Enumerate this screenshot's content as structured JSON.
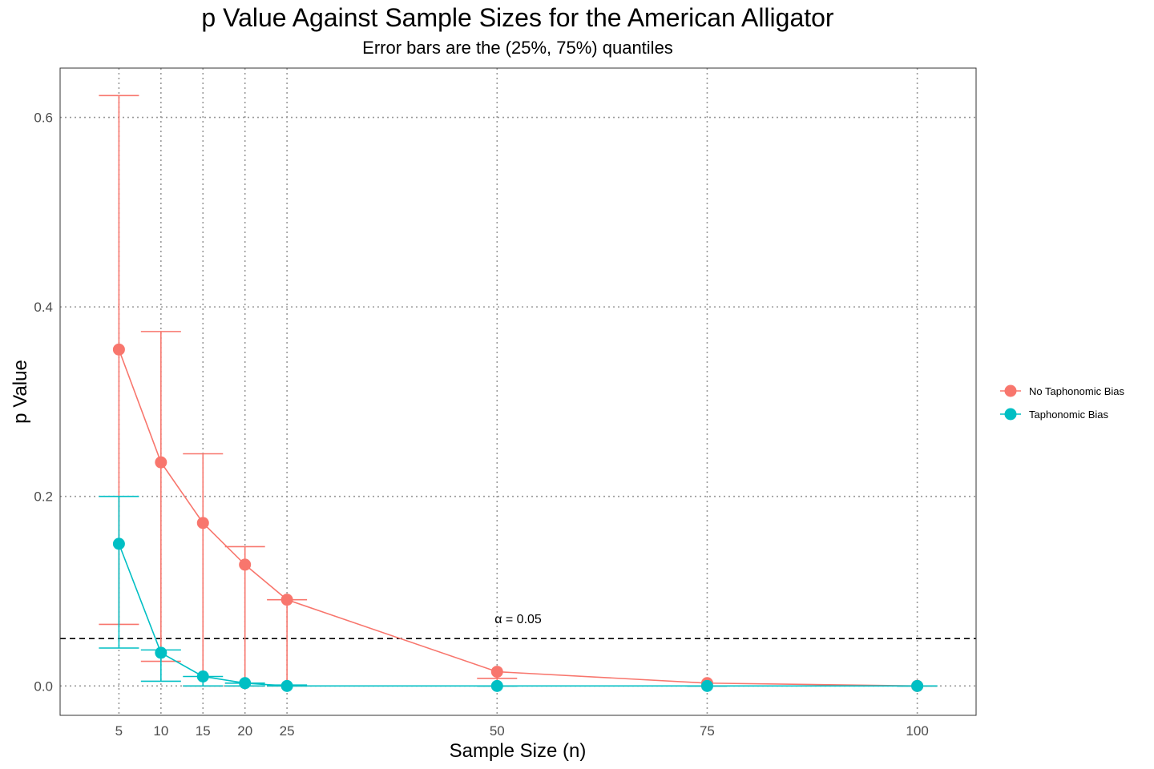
{
  "chart_data": {
    "type": "line",
    "title": "p Value Against Sample Sizes for the American Alligator",
    "subtitle": "Error bars are the (25%, 75%) quantiles",
    "xlabel": "Sample Size (n)",
    "ylabel": "p Value",
    "x_ticks": [
      5,
      10,
      15,
      20,
      25,
      50,
      75,
      100
    ],
    "y_ticks": [
      0.0,
      0.2,
      0.4,
      0.6
    ],
    "y_tick_labels": [
      "0.0",
      "0.2",
      "0.4",
      "0.6"
    ],
    "xlim": [
      -2,
      107
    ],
    "ylim": [
      -0.031,
      0.652
    ],
    "grid": "dotted, major gridlines at ticks",
    "legend_position": "right",
    "reference_line": {
      "y": 0.05,
      "style": "dashed",
      "color": "#000000",
      "label": "α = 0.05",
      "label_x": 52.5,
      "label_y": 0.066
    },
    "series": [
      {
        "name": "No Taphonomic Bias",
        "color": "#F8766D",
        "x": [
          5,
          10,
          15,
          20,
          25,
          50,
          75,
          100
        ],
        "y": [
          0.355,
          0.236,
          0.172,
          0.128,
          0.091,
          0.015,
          0.003,
          0.0
        ],
        "q25": [
          0.065,
          0.026,
          0.0,
          0.0,
          0.0,
          0.0,
          0.0,
          0.0
        ],
        "q75": [
          0.623,
          0.374,
          0.245,
          0.147,
          0.091,
          0.008,
          0.0,
          0.0
        ]
      },
      {
        "name": "Taphonomic Bias",
        "color": "#00BFC4",
        "x": [
          5,
          10,
          15,
          20,
          25,
          50,
          75,
          100
        ],
        "y": [
          0.15,
          0.035,
          0.01,
          0.003,
          0.0,
          0.0,
          0.0,
          0.0
        ],
        "q25": [
          0.04,
          0.005,
          0.0,
          0.0,
          0.0,
          0.0,
          0.0,
          0.0
        ],
        "q75": [
          0.2,
          0.038,
          0.01,
          0.003,
          0.001,
          0.0,
          0.0,
          0.0
        ]
      }
    ]
  }
}
